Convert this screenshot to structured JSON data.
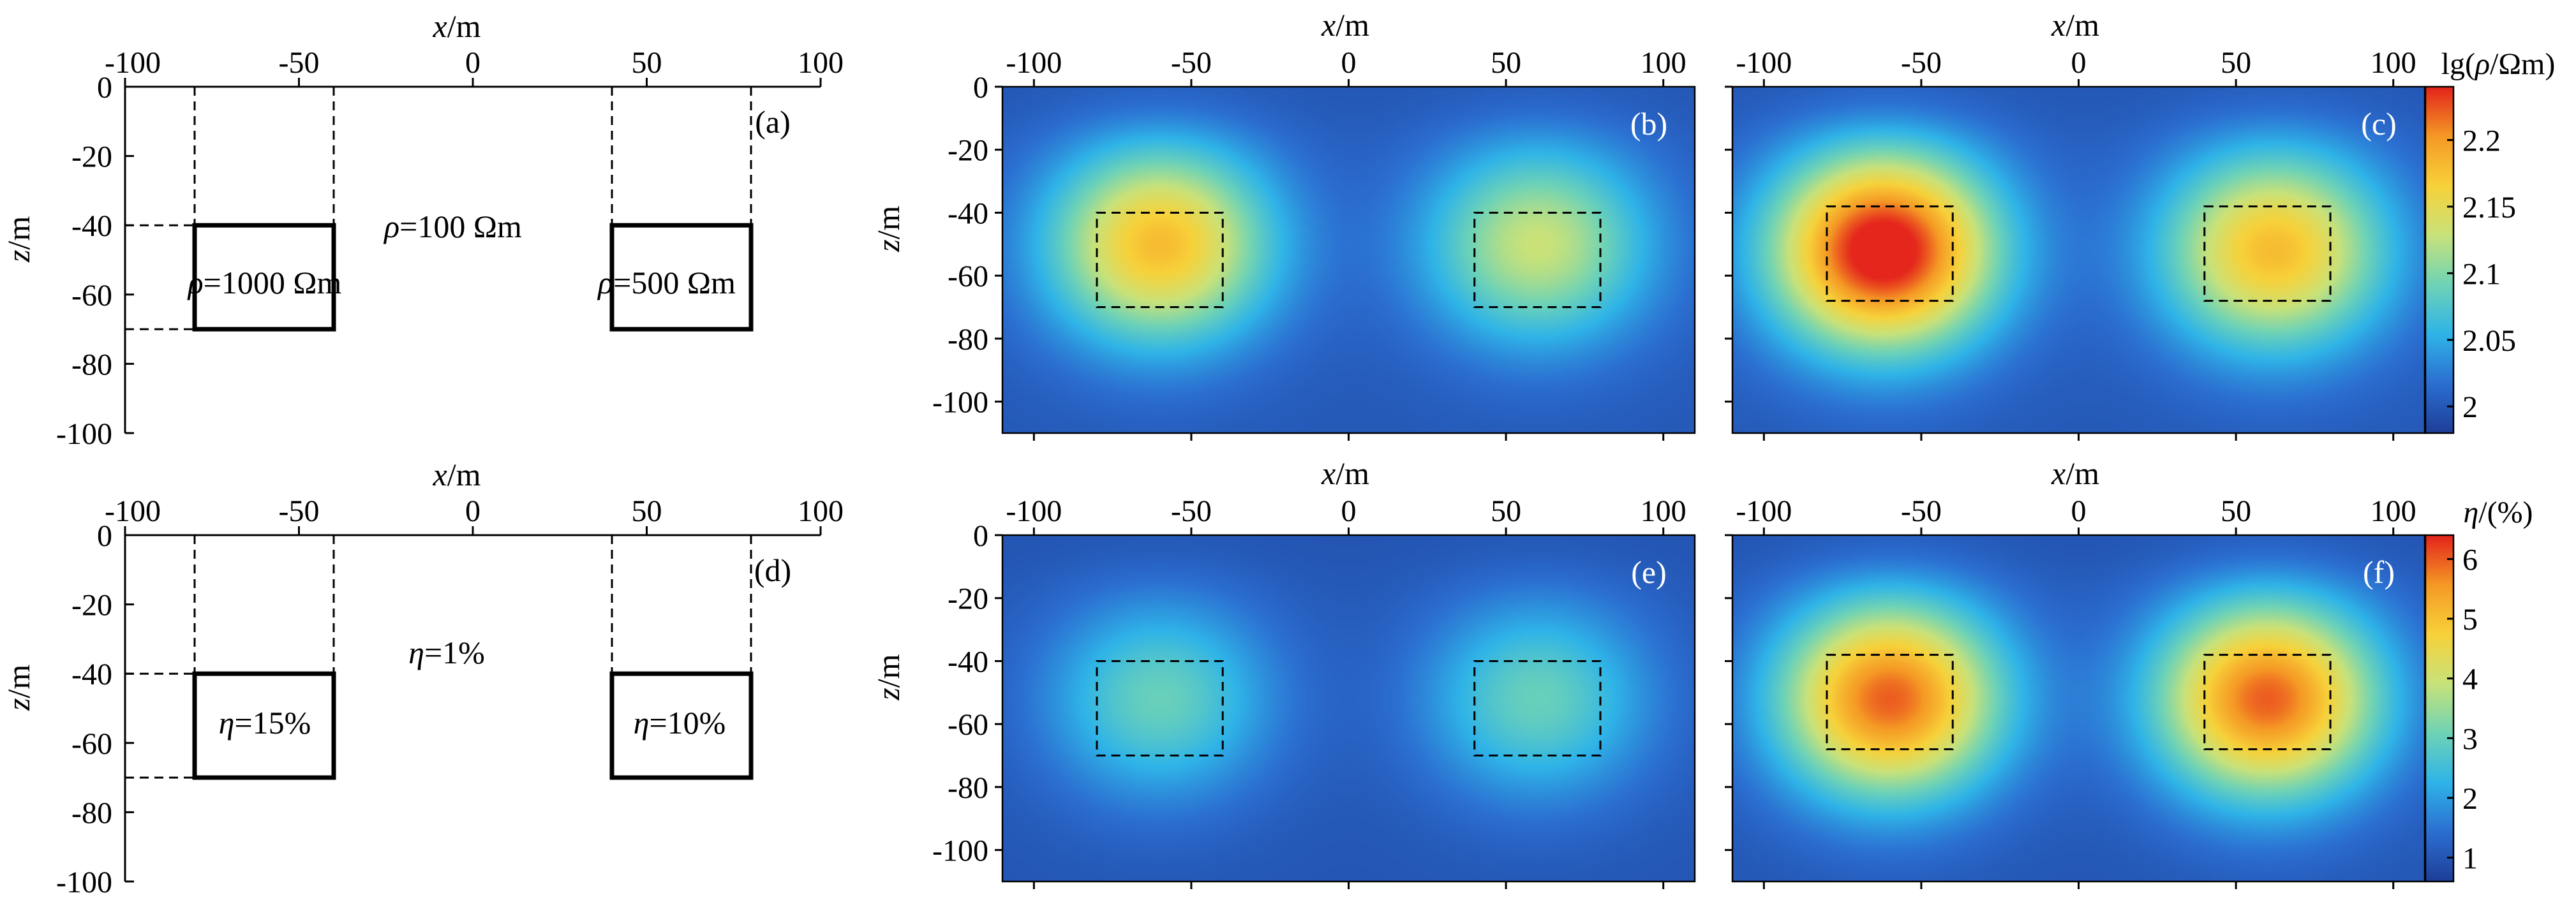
{
  "chart_data": [
    {
      "panel": "(a)",
      "type": "model",
      "xlabel": "x/m",
      "ylabel": "z/m",
      "xticks": [
        -100,
        -50,
        0,
        50,
        100
      ],
      "yticks": [
        0,
        -20,
        -40,
        -60,
        -80,
        -100
      ],
      "xlim": [
        -100,
        100
      ],
      "ylim": [
        -100,
        0
      ],
      "background_label": "ρ=100 Ωm",
      "bodies": [
        {
          "label": "ρ=1000 Ωm",
          "x": [
            -80,
            -40
          ],
          "z": [
            -70,
            -40
          ]
        },
        {
          "label": "ρ=500 Ωm",
          "x": [
            40,
            80
          ],
          "z": [
            -70,
            -40
          ]
        }
      ]
    },
    {
      "panel": "(b)",
      "type": "heatmap",
      "xlabel": "x/m",
      "ylabel": "z/m",
      "xticks": [
        -100,
        -50,
        0,
        50,
        100
      ],
      "yticks": [
        0,
        -20,
        -40,
        -60,
        -80,
        -100
      ],
      "xlim": [
        -110,
        110
      ],
      "ylim": [
        -110,
        0
      ],
      "quantity": "lg(ρ/Ωm)",
      "anomalies": [
        {
          "x": -60,
          "z": -50,
          "peak": 2.18
        },
        {
          "x": 60,
          "z": -50,
          "peak": 2.13
        }
      ],
      "background": 2.0,
      "dashed_boxes": [
        {
          "x": [
            -80,
            -40
          ],
          "z": [
            -70,
            -40
          ]
        },
        {
          "x": [
            40,
            80
          ],
          "z": [
            -70,
            -40
          ]
        }
      ]
    },
    {
      "panel": "(c)",
      "type": "heatmap",
      "xlabel": "x/m",
      "xticks": [
        -100,
        -50,
        0,
        50,
        100
      ],
      "xlim": [
        -110,
        110
      ],
      "ylim": [
        -110,
        0
      ],
      "quantity": "lg(ρ/Ωm)",
      "anomalies": [
        {
          "x": -62,
          "z": -52,
          "peak": 2.26
        },
        {
          "x": 62,
          "z": -52,
          "peak": 2.18
        }
      ],
      "background": 2.0,
      "dashed_boxes": [
        {
          "x": [
            -80,
            -40
          ],
          "z": [
            -68,
            -38
          ]
        },
        {
          "x": [
            40,
            80
          ],
          "z": [
            -68,
            -38
          ]
        }
      ],
      "colorbar": {
        "label": "lg(ρ/Ωm)",
        "ticks": [
          "2.2",
          "2.15",
          "2.1",
          "2.05",
          "2"
        ],
        "range": [
          1.98,
          2.24
        ]
      }
    },
    {
      "panel": "(d)",
      "type": "model",
      "xlabel": "x/m",
      "ylabel": "z/m",
      "xticks": [
        -100,
        -50,
        0,
        50,
        100
      ],
      "yticks": [
        0,
        -20,
        -40,
        -60,
        -80,
        -100
      ],
      "xlim": [
        -100,
        100
      ],
      "ylim": [
        -100,
        0
      ],
      "background_label": "η=1%",
      "bodies": [
        {
          "label": "η=15%",
          "x": [
            -80,
            -40
          ],
          "z": [
            -70,
            -40
          ]
        },
        {
          "label": "η=10%",
          "x": [
            40,
            80
          ],
          "z": [
            -70,
            -40
          ]
        }
      ]
    },
    {
      "panel": "(e)",
      "type": "heatmap",
      "xlabel": "x/m",
      "ylabel": "z/m",
      "xticks": [
        -100,
        -50,
        0,
        50,
        100
      ],
      "yticks": [
        0,
        -20,
        -40,
        -60,
        -80,
        -100
      ],
      "xlim": [
        -110,
        110
      ],
      "ylim": [
        -110,
        0
      ],
      "quantity": "η/(%)",
      "anomalies": [
        {
          "x": -60,
          "z": -52,
          "peak": 3.0
        },
        {
          "x": 60,
          "z": -52,
          "peak": 3.0
        }
      ],
      "background": 1.0,
      "dashed_boxes": [
        {
          "x": [
            -80,
            -40
          ],
          "z": [
            -70,
            -40
          ]
        },
        {
          "x": [
            40,
            80
          ],
          "z": [
            -70,
            -40
          ]
        }
      ]
    },
    {
      "panel": "(f)",
      "type": "heatmap",
      "xlabel": "x/m",
      "xticks": [
        -100,
        -50,
        0,
        50,
        100
      ],
      "xlim": [
        -110,
        110
      ],
      "ylim": [
        -110,
        0
      ],
      "quantity": "η/(%)",
      "anomalies": [
        {
          "x": -60,
          "z": -52,
          "peak": 6.0
        },
        {
          "x": 60,
          "z": -52,
          "peak": 6.0
        }
      ],
      "background": 1.0,
      "dashed_boxes": [
        {
          "x": [
            -80,
            -40
          ],
          "z": [
            -68,
            -38
          ]
        },
        {
          "x": [
            40,
            80
          ],
          "z": [
            -68,
            -38
          ]
        }
      ],
      "colorbar": {
        "label": "η/(%)",
        "ticks": [
          "6",
          "5",
          "4",
          "3",
          "2",
          "1"
        ],
        "range": [
          0.6,
          6.4
        ]
      }
    }
  ],
  "colors": {
    "colormap": [
      "#1e3f9a",
      "#2b6fd1",
      "#2fb4e8",
      "#6fd3b6",
      "#c8e27a",
      "#f7d23a",
      "#f59a25",
      "#e4261c"
    ],
    "axis": "#000000"
  }
}
